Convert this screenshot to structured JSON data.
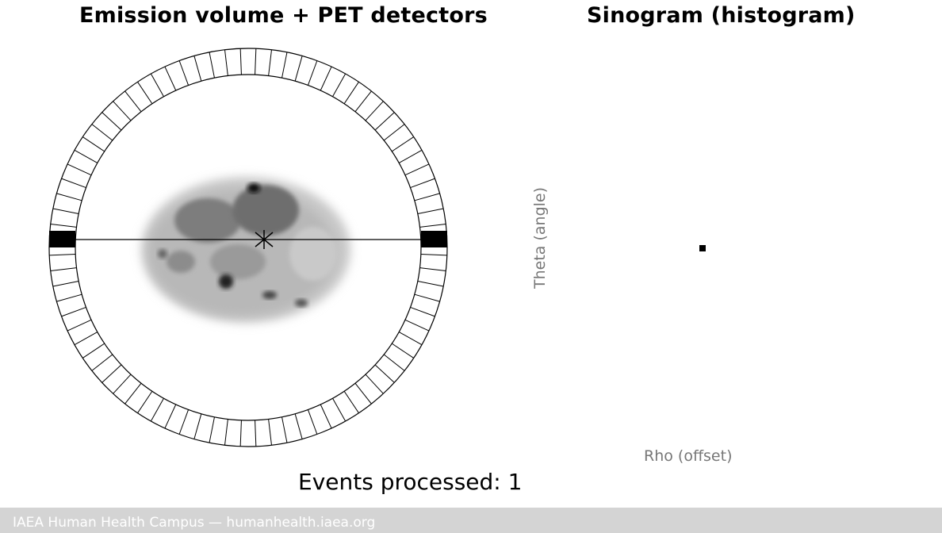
{
  "left_panel": {
    "title": "Emission volume + PET detectors"
  },
  "right_panel": {
    "title": "Sinogram (histogram)",
    "y_label": "Theta (angle)",
    "x_label": "Rho (offset)"
  },
  "status": {
    "events_text": "Events processed: 1"
  },
  "footer": {
    "text": "IAEA Human Health Campus — humanhealth.iaea.org"
  },
  "colors": {
    "detector_active": "#000000",
    "footer_bg": "#d4d4d4",
    "axis_label": "#777777"
  }
}
